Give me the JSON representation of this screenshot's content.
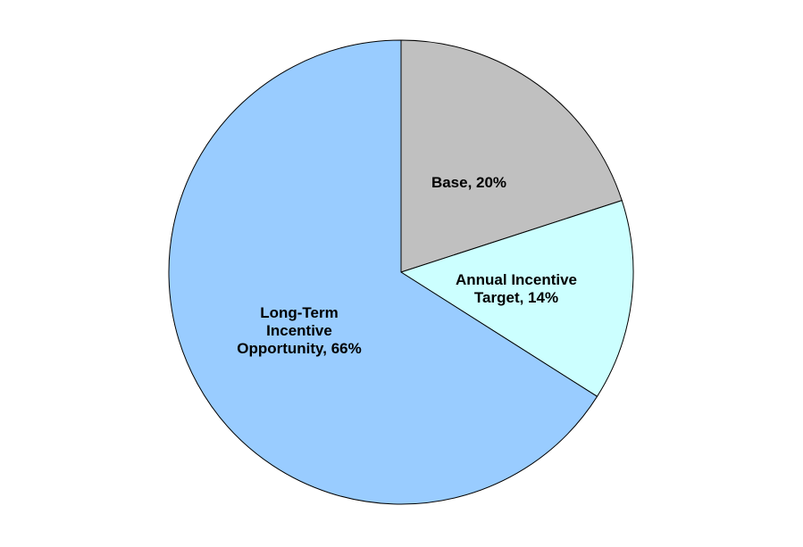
{
  "chart_data": {
    "type": "pie",
    "title": "",
    "start_angle_deg": 0,
    "direction": "clockwise",
    "legend": "none",
    "slices": [
      {
        "label_lines": [
          "Base, 20%"
        ],
        "value": 20,
        "color": "#C0C0C0"
      },
      {
        "label_lines": [
          "Annual Incentive",
          "Target, 14%"
        ],
        "value": 14,
        "color": "#CCFFFF"
      },
      {
        "label_lines": [
          "Long-Term",
          "Incentive",
          "Opportunity, 66%"
        ],
        "value": 66,
        "color": "#99CCFF"
      }
    ]
  }
}
